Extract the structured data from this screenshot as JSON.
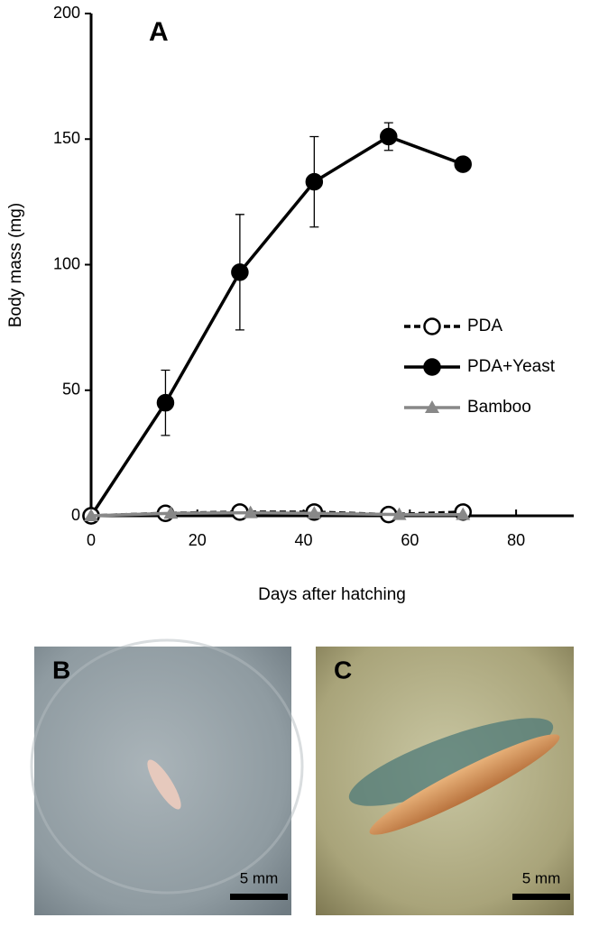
{
  "chart_data": {
    "type": "line",
    "panel_label": "A",
    "ylabel": "Body mass (mg)",
    "xlabel": "Days after hatching",
    "xlim": [
      0,
      90
    ],
    "xticks": [
      0,
      20,
      40,
      60,
      80
    ],
    "ylim": [
      0,
      200
    ],
    "yticks": [
      0,
      50,
      100,
      150,
      200
    ],
    "legend": "right",
    "series": [
      {
        "name": "PDA",
        "color": "#000000",
        "marker": "open-circle",
        "dashed": true,
        "x": [
          0,
          14,
          28,
          42,
          56,
          70
        ],
        "values": [
          0,
          1,
          1.5,
          1.5,
          0.5,
          1.5
        ]
      },
      {
        "name": "PDA+Yeast",
        "color": "#000000",
        "marker": "filled-circle",
        "dashed": false,
        "x": [
          0,
          14,
          28,
          42,
          56,
          70
        ],
        "values": [
          0,
          45,
          97,
          133,
          151,
          140
        ],
        "errors": [
          null,
          13,
          23,
          18,
          5.5,
          null
        ]
      },
      {
        "name": "Bamboo",
        "color": "#888888",
        "marker": "triangle",
        "dashed": false,
        "x": [
          0,
          15,
          30,
          42,
          58,
          70
        ],
        "values": [
          0,
          1,
          1.2,
          1,
          0.5,
          0.5
        ]
      }
    ]
  },
  "panels": [
    {
      "label": "B",
      "scale": "5 mm"
    },
    {
      "label": "C",
      "scale": "5 mm"
    }
  ]
}
